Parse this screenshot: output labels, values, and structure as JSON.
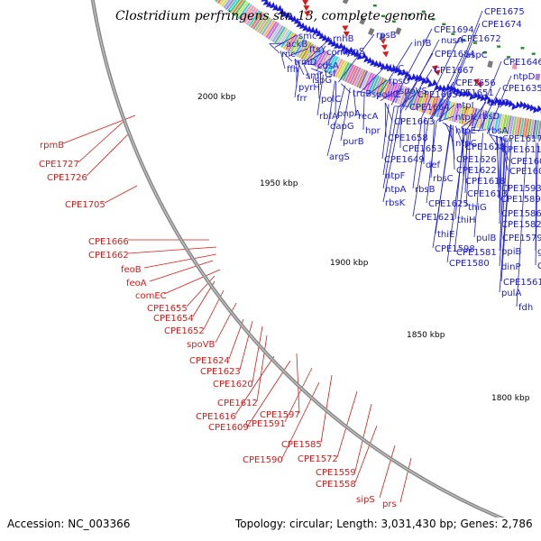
{
  "title": "Clostridium perfringens str. 13, complete genome",
  "footer": {
    "accession": "Accession: NC_003366",
    "summary": "Topology: circular; Length: 3,031,430 bp; Genes: 2,786"
  },
  "colors": {
    "forward": "#1a1ad8",
    "reverse": "#d81a1a",
    "backbone": "#888888",
    "rna": "#2a8a2a"
  },
  "kbp_ticks": [
    "2000 kbp",
    "1950 kbp",
    "1900 kbp",
    "1850 kbp",
    "1800 kbp"
  ],
  "forward_labels": [
    "CPE1694",
    "nusA",
    "CPE1675",
    "CPE1674",
    "CPE1672",
    "rpsB",
    "infB",
    "CPE1684",
    "aspC",
    "smc",
    "rnhB",
    "ackB",
    "ftsY",
    "comM",
    "uppS",
    "rnc",
    "trmD",
    "cdsA",
    "ffh",
    "smf",
    "tsf",
    "ispG",
    "pyrH",
    "ribC",
    "frr",
    "polC",
    "truB",
    "spoIIIE",
    "rpsO",
    "spoVS",
    "CPE1665",
    "CPE1667",
    "CPE1656",
    "CPE1651",
    "CPE1646",
    "ntpD",
    "CPE1635",
    "ntpI",
    "tagO",
    "pnpA",
    "CPE1664",
    "rbfA",
    "recA",
    "ntpK",
    "rbsD",
    "CPE1663",
    "dapG",
    "hpr",
    "ntpE",
    "rbsA",
    "CPE1658",
    "purB",
    "CPE1653",
    "ntpC",
    "CPE1628",
    "CPE1617",
    "CPE1611",
    "argS",
    "CPE1649",
    "def",
    "CPE1626",
    "CPE1605",
    "CPE1622",
    "CPE1602",
    "ntpF",
    "rbsC",
    "CPE1618",
    "CPE1593",
    "ntpA",
    "rbsB",
    "CPE1613",
    "CPE1589",
    "rbsK",
    "CPE1625",
    "thiG",
    "CPE1586",
    "CPE1582",
    "CPE1621",
    "thiH",
    "CPE1579",
    "thiE",
    "pulB",
    "CPE1598",
    "CPE1581",
    "ppiB",
    "glgB",
    "CPE1580",
    "dinP",
    "CPE1565",
    "CPE1561",
    "pulA",
    "fdh"
  ],
  "reverse_labels": [
    "rpmB",
    "CPE1727",
    "CPE1726",
    "CPE1705",
    "CPE1666",
    "CPE1662",
    "feoB",
    "feoA",
    "comEC",
    "CPE1655",
    "CPE1654",
    "CPE1652",
    "spoVB",
    "CPE1624",
    "CPE1623",
    "CPE1620",
    "CPE1612",
    "CPE1597",
    "CPE1616",
    "CPE1591",
    "CPE1609",
    "CPE1585",
    "CPE1590",
    "CPE1572",
    "CPE1559",
    "CPE1558",
    "sipS",
    "prs"
  ]
}
